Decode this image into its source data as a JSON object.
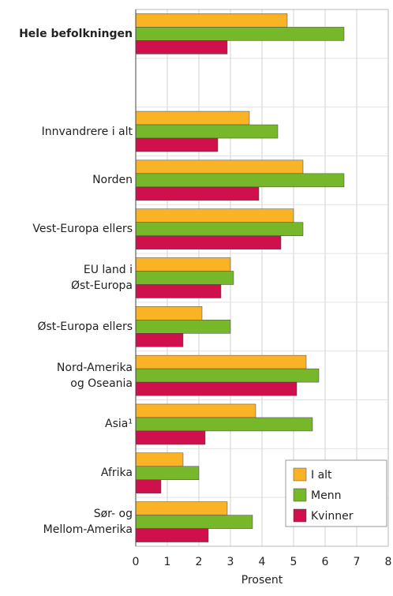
{
  "chart_data": {
    "type": "barh",
    "xlabel": "Prosent",
    "categories": [
      "Hele befolkningen",
      null,
      "Innvandrere i alt",
      "Norden",
      "Vest-Europa ellers",
      "EU land i\nØst-Europa",
      "Øst-Europa ellers",
      "Nord-Amerika\nog Oseania",
      "Asia¹",
      "Afrika",
      "Sør- og\nMellom-Amerika"
    ],
    "series": [
      {
        "name": "I alt",
        "color": "#f9b324",
        "values": [
          4.8,
          null,
          3.6,
          5.3,
          5.0,
          3.0,
          2.1,
          5.4,
          3.8,
          1.5,
          2.9
        ]
      },
      {
        "name": "Menn",
        "color": "#77b82a",
        "values": [
          6.6,
          null,
          4.5,
          6.6,
          5.3,
          3.1,
          3.0,
          5.8,
          5.6,
          2.0,
          3.7
        ]
      },
      {
        "name": "Kvinner",
        "color": "#d0104c",
        "values": [
          2.9,
          null,
          2.6,
          3.9,
          4.6,
          2.7,
          1.5,
          5.1,
          2.2,
          0.8,
          2.3
        ]
      }
    ],
    "xlim": [
      0,
      8
    ],
    "xticks": [
      0,
      1,
      2,
      3,
      4,
      5,
      6,
      7,
      8
    ],
    "grid": true,
    "legend": "lower right"
  }
}
